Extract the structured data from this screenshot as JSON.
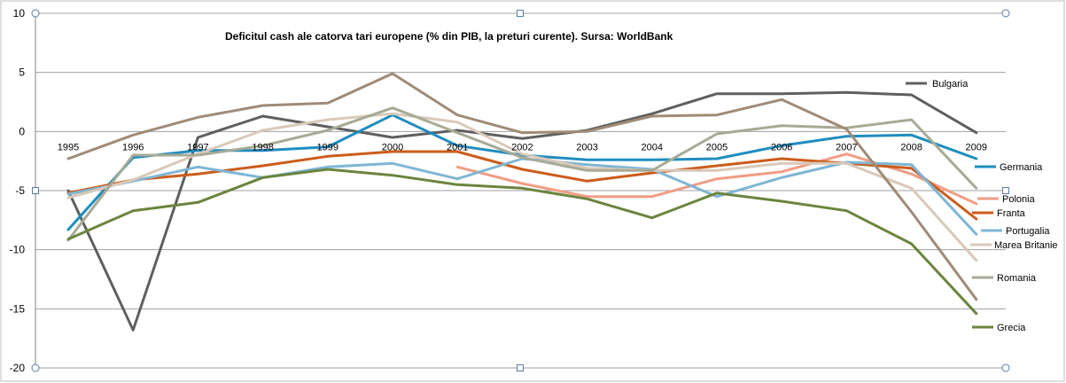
{
  "chart_data": {
    "type": "line",
    "title": "Deficitul cash ale catorva tari europene (% din PIB, la preturi curente). Sursa: WorldBank",
    "xlabel": "",
    "ylabel": "",
    "ylim": [
      -20,
      10
    ],
    "yticks": [
      10,
      5,
      0,
      -5,
      -10,
      -15,
      -20
    ],
    "categories": [
      "1995",
      "1996",
      "1997",
      "1998",
      "1999",
      "2000",
      "2001",
      "2002",
      "2003",
      "2004",
      "2005",
      "2006",
      "2007",
      "2008",
      "2009"
    ],
    "grid": true,
    "series": [
      {
        "name": "Bulgaria",
        "color": "#5f5f5f",
        "values": [
          -5.0,
          -16.8,
          -0.5,
          1.3,
          0.4,
          -0.5,
          0.1,
          -0.6,
          0.1,
          1.5,
          3.2,
          3.2,
          3.3,
          3.1,
          -0.1
        ]
      },
      {
        "name": "Germania",
        "color": "#1f8dc0",
        "values": [
          -8.3,
          -2.2,
          -1.6,
          -1.6,
          -1.3,
          1.4,
          -1.2,
          -2.0,
          -2.4,
          -2.4,
          -2.3,
          -1.2,
          -0.4,
          -0.3,
          -2.3
        ]
      },
      {
        "name": "Polonia",
        "color": "#f09d84",
        "values": [
          null,
          null,
          null,
          null,
          null,
          null,
          -3.0,
          -4.4,
          -5.5,
          -5.5,
          -4.0,
          -3.4,
          -1.9,
          -3.6,
          -6.1
        ]
      },
      {
        "name": "Franta",
        "color": "#cc5c1a",
        "values": [
          -5.2,
          -4.1,
          -3.6,
          -2.9,
          -2.1,
          -1.7,
          -1.7,
          -3.2,
          -4.2,
          -3.5,
          -2.9,
          -2.3,
          -2.7,
          -3.1,
          -7.4
        ]
      },
      {
        "name": "Portugalia",
        "color": "#7fb6d4",
        "values": [
          -5.3,
          -4.2,
          -3.0,
          -3.9,
          -3.0,
          -2.7,
          -4.0,
          -2.3,
          -2.8,
          -3.2,
          -5.5,
          -3.9,
          -2.6,
          -2.8,
          -8.7
        ]
      },
      {
        "name": "Marea Britanie",
        "color": "#d9c9b8",
        "values": [
          -5.6,
          -4.1,
          -1.9,
          0.1,
          1.0,
          1.5,
          0.8,
          -1.9,
          -3.1,
          -3.3,
          -3.3,
          -2.7,
          -2.7,
          -4.8,
          -10.9
        ]
      },
      {
        "name": "Romania",
        "color": "#a7aa95",
        "values": [
          -9.2,
          -2.0,
          -2.0,
          -1.2,
          0.1,
          2.0,
          -0.1,
          -2.2,
          -3.3,
          -3.3,
          -0.2,
          0.5,
          0.3,
          1.0,
          -4.8
        ]
      },
      {
        "name": "Grecia",
        "color": "#6b853e",
        "values": [
          -9.1,
          -6.7,
          -6.0,
          -3.9,
          -3.2,
          -3.7,
          -4.5,
          -4.8,
          -5.7,
          -7.3,
          -5.2,
          -5.9,
          -6.7,
          -9.5,
          -15.4
        ]
      },
      {
        "name": "",
        "color": "#a08b78",
        "values": [
          -2.3,
          -0.3,
          1.2,
          2.2,
          2.4,
          4.9,
          1.4,
          -0.1,
          0.0,
          1.3,
          1.4,
          2.7,
          0.2,
          -6.8,
          -14.2
        ]
      }
    ]
  }
}
